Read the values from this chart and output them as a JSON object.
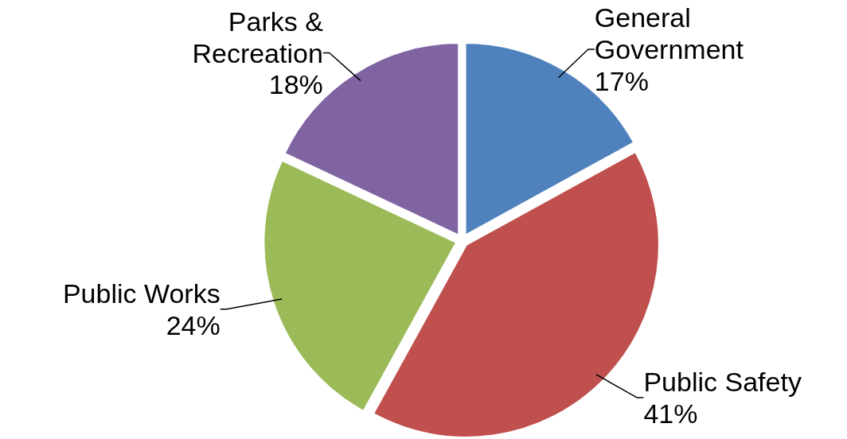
{
  "chart_data": {
    "type": "pie",
    "categories": [
      "General Government",
      "Public Safety",
      "Public Works",
      "Parks & Recreation"
    ],
    "values": [
      17,
      41,
      24,
      18
    ],
    "value_labels": [
      "17%",
      "41%",
      "24%",
      "18%"
    ],
    "colors": [
      "#4f81bd",
      "#c0504d",
      "#9bbb59",
      "#8064a2"
    ],
    "legend": false
  }
}
